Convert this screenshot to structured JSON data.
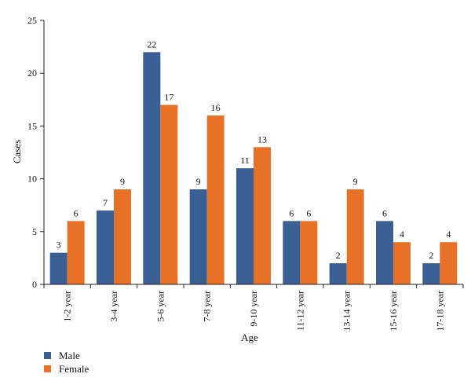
{
  "chart_data": {
    "type": "bar",
    "title": "",
    "xlabel": "Age",
    "ylabel": "Cases",
    "ylim": [
      0,
      25
    ],
    "yticks": [
      0,
      5,
      10,
      15,
      20,
      25
    ],
    "categories": [
      "1-2 year",
      "3-4 year",
      "5-6 year",
      "7-8 year",
      "9-10 year",
      "11-12 year",
      "13-14 year",
      "15-16 year",
      "17-18 year"
    ],
    "series": [
      {
        "name": "Male",
        "color": "#3a5f94",
        "values": [
          3,
          7,
          22,
          9,
          11,
          6,
          2,
          6,
          2
        ]
      },
      {
        "name": "Female",
        "color": "#e87128",
        "values": [
          6,
          9,
          17,
          16,
          13,
          6,
          9,
          4,
          4
        ]
      }
    ],
    "grid": false,
    "legend_position": "bottom-left"
  }
}
